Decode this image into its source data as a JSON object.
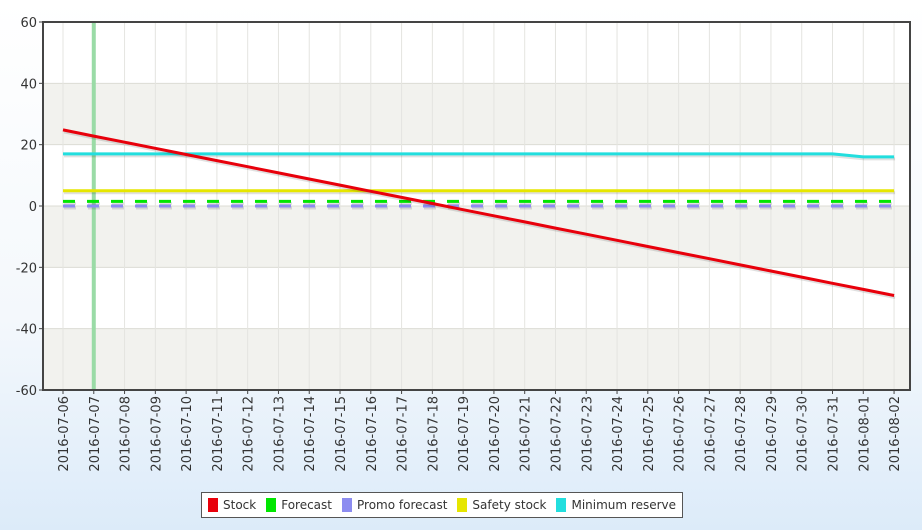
{
  "chart_data": {
    "type": "line",
    "x": [
      "2016-07-06",
      "2016-07-07",
      "2016-07-08",
      "2016-07-09",
      "2016-07-10",
      "2016-07-11",
      "2016-07-12",
      "2016-07-13",
      "2016-07-14",
      "2016-07-15",
      "2016-07-16",
      "2016-07-17",
      "2016-07-18",
      "2016-07-19",
      "2016-07-20",
      "2016-07-21",
      "2016-07-22",
      "2016-07-23",
      "2016-07-24",
      "2016-07-25",
      "2016-07-26",
      "2016-07-27",
      "2016-07-28",
      "2016-07-29",
      "2016-07-30",
      "2016-07-31",
      "2016-08-01",
      "2016-08-02"
    ],
    "ylim": [
      -60,
      60
    ],
    "yticks": [
      60,
      40,
      20,
      0,
      -20,
      -40,
      -60
    ],
    "grid": true,
    "legend_position": "bottom-center",
    "current_date_marker": "2016-07-07",
    "series": [
      {
        "name": "Stock",
        "color": "#e8000b",
        "dashed": false,
        "values": [
          24.8,
          22.8,
          20.8,
          18.8,
          16.8,
          14.8,
          12.8,
          10.8,
          8.8,
          6.8,
          4.8,
          2.8,
          0.8,
          -1.2,
          -3.2,
          -5.2,
          -7.2,
          -9.2,
          -11.2,
          -13.2,
          -15.2,
          -17.2,
          -19.2,
          -21.2,
          -23.2,
          -25.2,
          -27.2,
          -29.2
        ]
      },
      {
        "name": "Forecast",
        "color": "#00e600",
        "dashed": true,
        "values": [
          1.5,
          1.5,
          1.5,
          1.5,
          1.5,
          1.5,
          1.5,
          1.5,
          1.5,
          1.5,
          1.5,
          1.5,
          1.5,
          1.5,
          1.5,
          1.5,
          1.5,
          1.5,
          1.5,
          1.5,
          1.5,
          1.5,
          1.5,
          1.5,
          1.5,
          1.5,
          1.5,
          1.5
        ]
      },
      {
        "name": "Promo forecast",
        "color": "#8c8cf0",
        "dashed": true,
        "values": [
          0,
          0,
          0,
          0,
          0,
          0,
          0,
          0,
          0,
          0,
          0,
          0,
          0,
          0,
          0,
          0,
          0,
          0,
          0,
          0,
          0,
          0,
          0,
          0,
          0,
          0,
          0,
          0
        ]
      },
      {
        "name": "Safety stock",
        "color": "#e6e600",
        "dashed": false,
        "values": [
          5,
          5,
          5,
          5,
          5,
          5,
          5,
          5,
          5,
          5,
          5,
          5,
          5,
          5,
          5,
          5,
          5,
          5,
          5,
          5,
          5,
          5,
          5,
          5,
          5,
          5,
          5,
          5
        ]
      },
      {
        "name": "Minimum reserve",
        "color": "#22dede",
        "dashed": false,
        "values": [
          17,
          17,
          17,
          17,
          17,
          17,
          17,
          17,
          17,
          17,
          17,
          17,
          17,
          17,
          17,
          17,
          17,
          17,
          17,
          17,
          17,
          17,
          17,
          17,
          17,
          17,
          16,
          16
        ]
      }
    ]
  }
}
